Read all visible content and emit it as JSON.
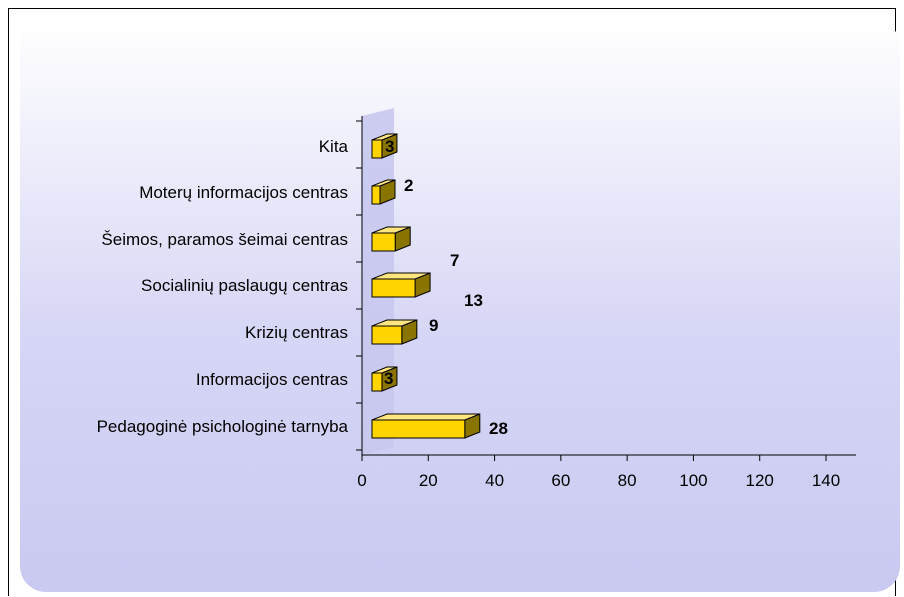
{
  "chart_data": {
    "type": "bar",
    "orientation": "horizontal",
    "three_d": true,
    "categories": [
      "Pedagoginė psichologinė tarnyba",
      "Informacijos centras",
      "Krizių centras",
      "Socialinių paslaugų centras",
      "Šeimos, paramos šeimai centras",
      "Moterų informacijos centras",
      "Kita"
    ],
    "values": [
      28,
      3,
      9,
      13,
      7,
      2,
      3
    ],
    "data_labels": [
      "28",
      "3",
      "9",
      "13",
      "7",
      "2",
      "3"
    ],
    "x_ticks": [
      "0",
      "20",
      "40",
      "60",
      "80",
      "100",
      "120",
      "140"
    ],
    "xlim": [
      0,
      140
    ],
    "title": "",
    "xlabel": "",
    "ylabel": "",
    "grid": false,
    "legend": "none",
    "colors": {
      "bar_front": "#ffd400",
      "bar_top": "#ffe680",
      "bar_side": "#8a7400",
      "wall": "#c8c8f0",
      "background": "#d0d0f4"
    }
  }
}
